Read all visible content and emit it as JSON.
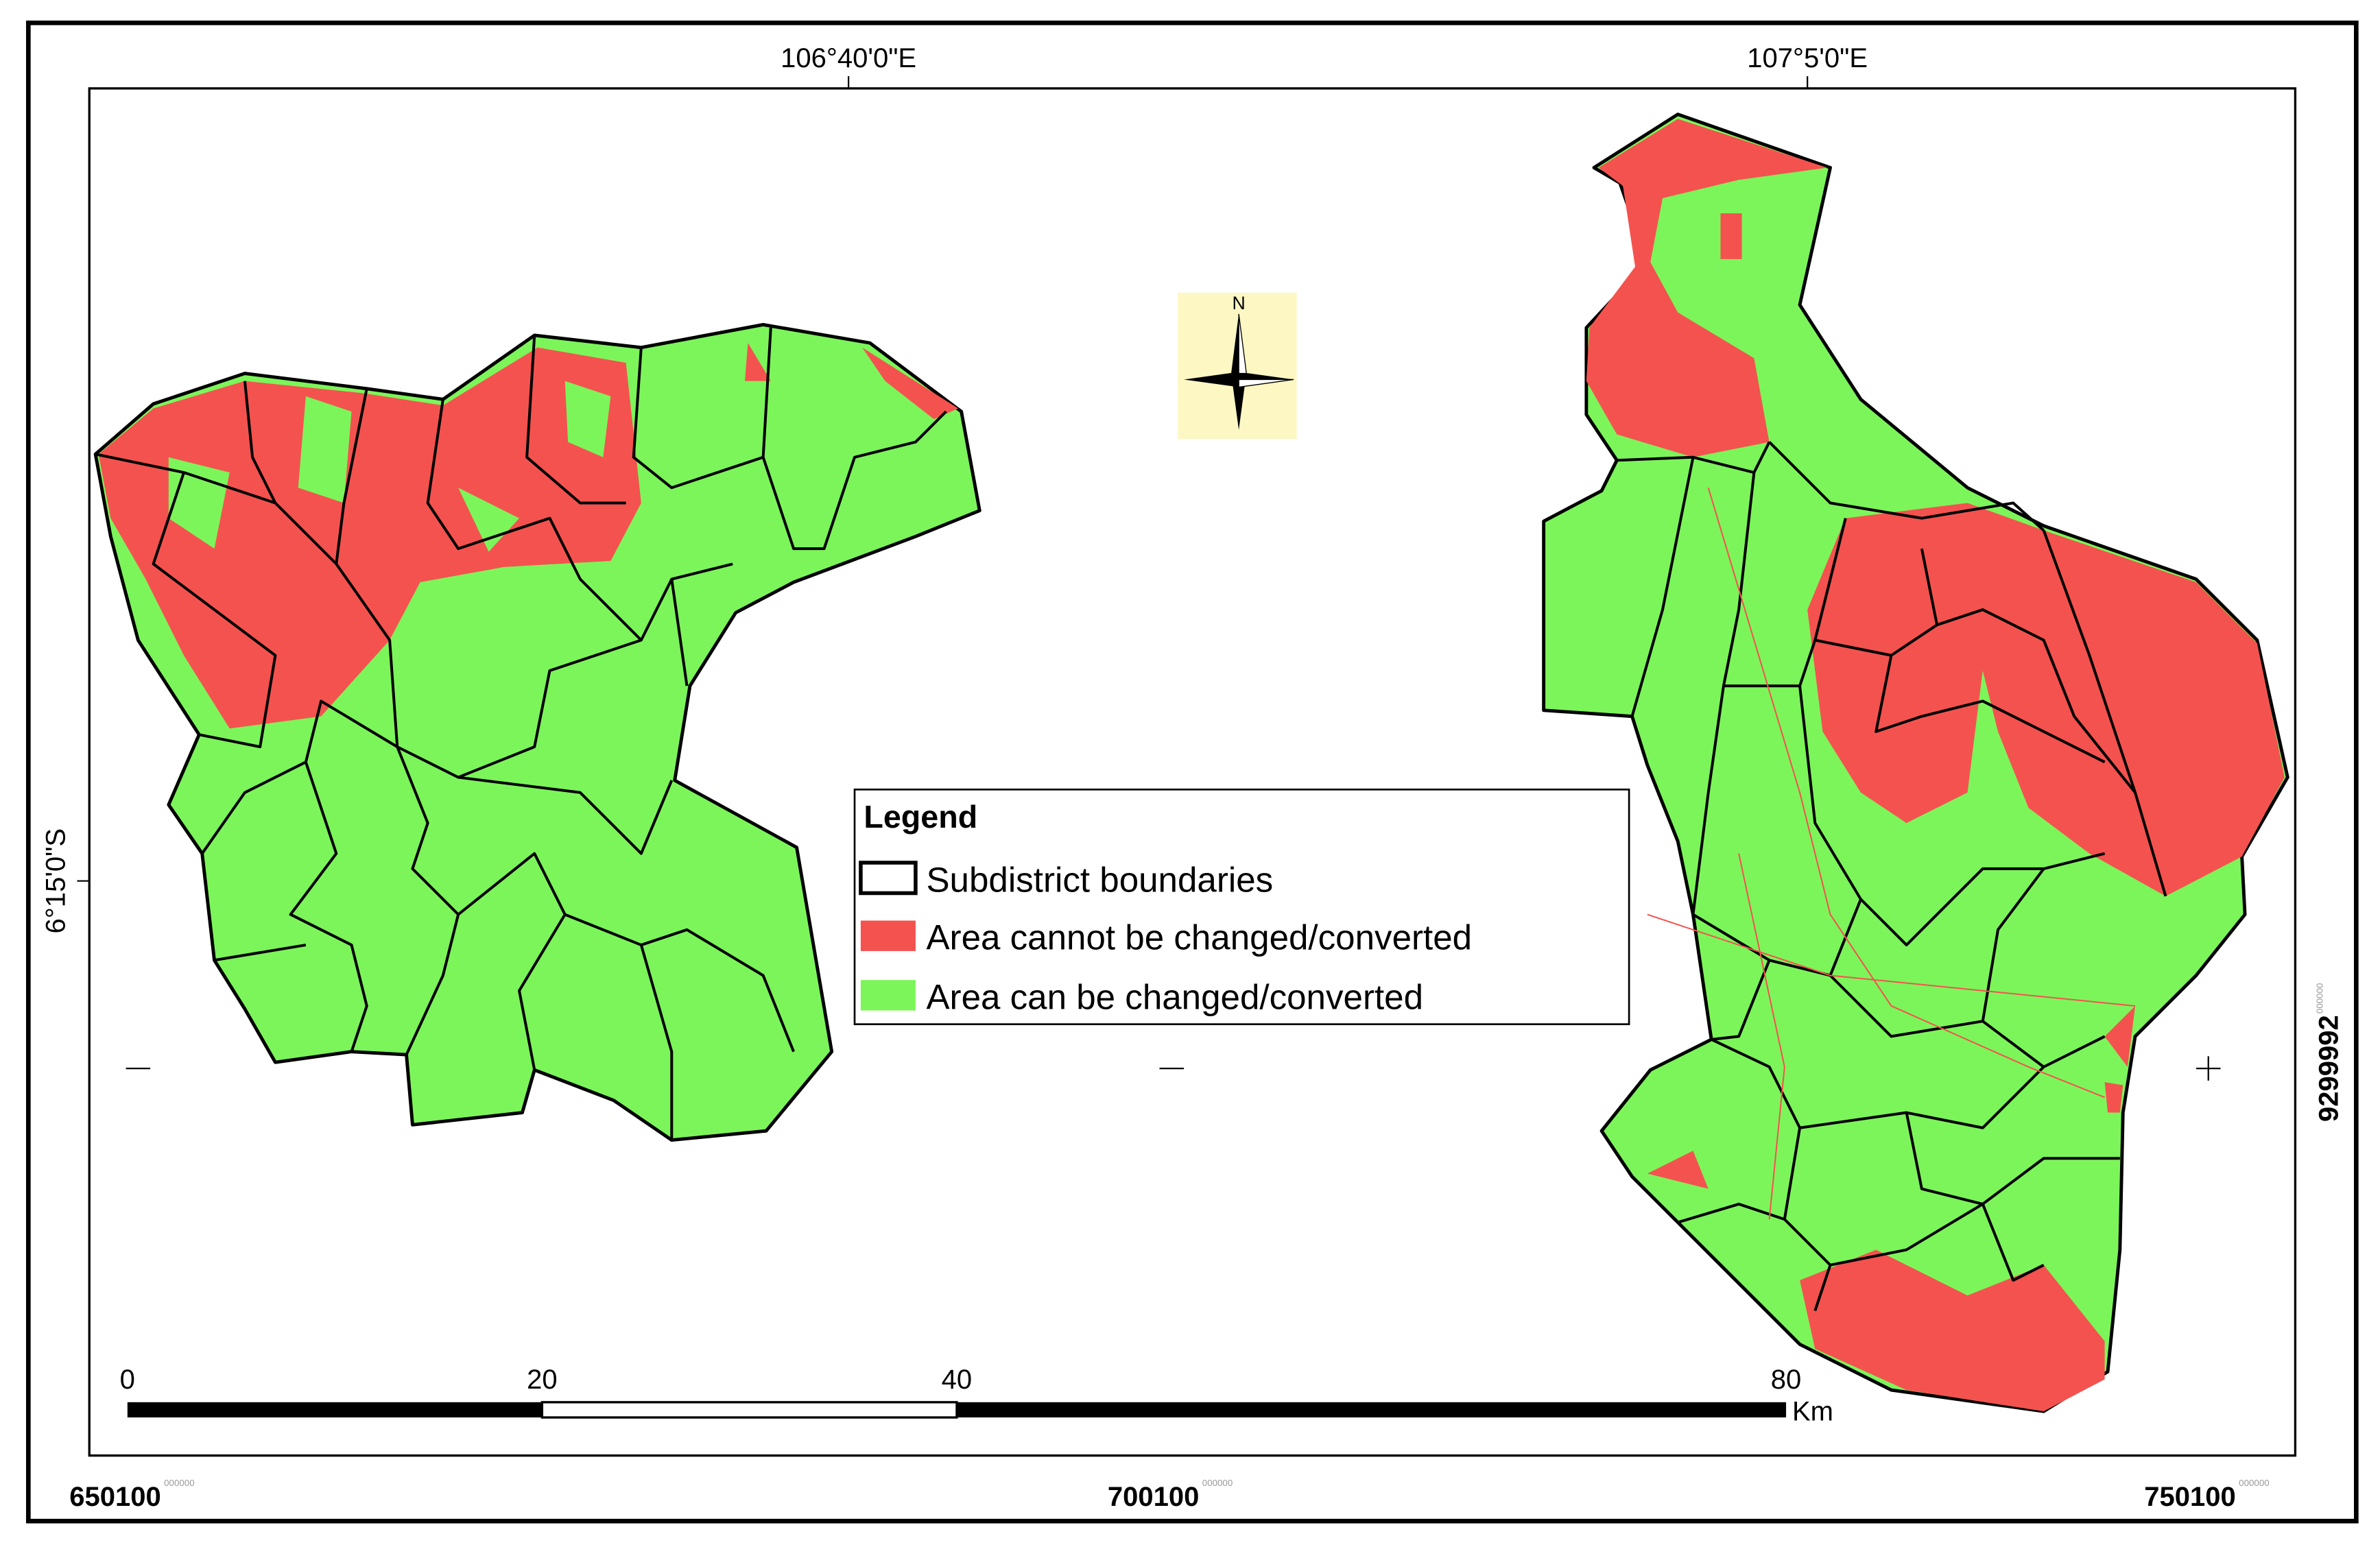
{
  "grid_labels": {
    "top": [
      "106°40'0\"E",
      "107°5'0\"E"
    ],
    "left": "6°15'0\"S",
    "right": {
      "value": "9299992",
      "suffix": "000000"
    },
    "bottom": [
      {
        "value": "650100",
        "suffix": "000000"
      },
      {
        "value": "700100",
        "suffix": "000000"
      },
      {
        "value": "750100",
        "suffix": "000000"
      }
    ]
  },
  "north_arrow": "N",
  "legend": {
    "title": "Legend",
    "items": [
      "Subdistrict boundaries",
      "Area cannot be changed/converted",
      "Area can be changed/converted"
    ]
  },
  "scale_bar": {
    "ticks": [
      "0",
      "20",
      "40",
      "80"
    ],
    "unit": "Km"
  }
}
